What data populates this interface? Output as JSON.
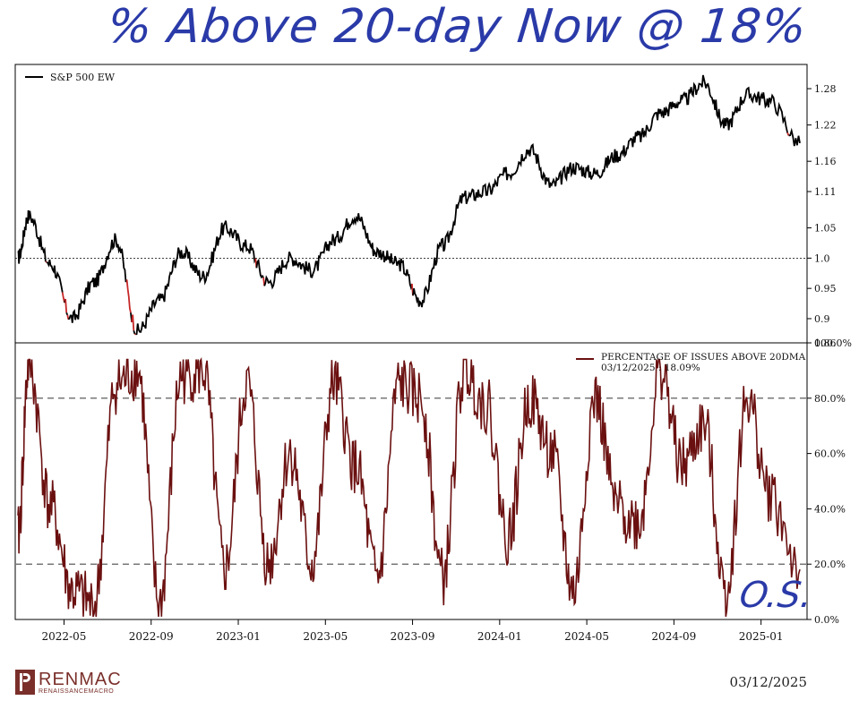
{
  "annotation": {
    "headline": "% Above 20-day Now @ 18%",
    "bottom_note": "O.S."
  },
  "footer": {
    "logo_brand": "RENMAC",
    "logo_sub": "RENAISSANCEMACRO",
    "date": "03/12/2025"
  },
  "colors": {
    "price_line": "#000000",
    "overbought": "#2e6b1e",
    "oversold": "#c62828",
    "breadth_line": "#6b1010",
    "reference_lines": "#777777",
    "annotation_ink": "#2a3aa8"
  },
  "chart_data": [
    {
      "type": "line",
      "legend": "S&P 500 EW",
      "legend_position": "top-left",
      "x": [
        "2022-03",
        "2022-04",
        "2022-05",
        "2022-06",
        "2022-07",
        "2022-08",
        "2022-09",
        "2022-10",
        "2022-11",
        "2022-12",
        "2023-01",
        "2023-02",
        "2023-03",
        "2023-04",
        "2023-05",
        "2023-06",
        "2023-07",
        "2023-08",
        "2023-09",
        "2023-10",
        "2023-11",
        "2023-12",
        "2024-01",
        "2024-02",
        "2024-03",
        "2024-04",
        "2024-05",
        "2024-06",
        "2024-07",
        "2024-08",
        "2024-09",
        "2024-10",
        "2024-11",
        "2024-12",
        "2025-01",
        "2025-02",
        "2025-03"
      ],
      "values": [
        1.0,
        1.07,
        0.99,
        0.9,
        0.96,
        1.03,
        0.88,
        0.93,
        1.01,
        0.97,
        1.05,
        1.02,
        0.96,
        1.0,
        0.98,
        1.03,
        1.07,
        1.01,
        0.99,
        0.93,
        1.02,
        1.1,
        1.11,
        1.14,
        1.18,
        1.12,
        1.15,
        1.14,
        1.17,
        1.2,
        1.24,
        1.26,
        1.29,
        1.22,
        1.27,
        1.26,
        1.19
      ],
      "reference_line": 1.0,
      "ylim": [
        0.86,
        1.32
      ],
      "yticks": [
        "0.86",
        "0.9",
        "0.95",
        "1.0",
        "1.05",
        "1.11",
        "1.16",
        "1.22",
        "1.28"
      ],
      "y_axis_position": "right"
    },
    {
      "type": "line",
      "legend": "PERCENTAGE OF ISSUES ABOVE 20DMA",
      "legend_sub": "03/12/2025 : 18.09%",
      "legend_position": "top-right",
      "x": [
        "2022-03",
        "2022-04",
        "2022-05",
        "2022-06",
        "2022-07",
        "2022-08",
        "2022-09",
        "2022-10",
        "2022-11",
        "2022-12",
        "2023-01",
        "2023-02",
        "2023-03",
        "2023-04",
        "2023-05",
        "2023-06",
        "2023-07",
        "2023-08",
        "2023-09",
        "2023-10",
        "2023-11",
        "2023-12",
        "2024-01",
        "2024-02",
        "2024-03",
        "2024-04",
        "2024-05",
        "2024-06",
        "2024-07",
        "2024-08",
        "2024-09",
        "2024-10",
        "2024-11",
        "2024-12",
        "2025-01",
        "2025-02",
        "2025-03"
      ],
      "values": [
        30,
        92,
        40,
        10,
        5,
        85,
        90,
        5,
        88,
        90,
        18,
        85,
        20,
        60,
        20,
        85,
        55,
        15,
        85,
        80,
        15,
        90,
        78,
        30,
        80,
        60,
        10,
        80,
        40,
        35,
        90,
        55,
        70,
        10,
        80,
        45,
        18.09
      ],
      "reference_lines": [
        20,
        80
      ],
      "ylim": [
        0,
        100
      ],
      "yticks": [
        "0.0%",
        "20.0%",
        "40.0%",
        "60.0%",
        "80.0%",
        "100.0%"
      ],
      "y_axis_position": "right"
    }
  ],
  "x_axis": {
    "ticks": [
      "2022-05",
      "2022-09",
      "2023-01",
      "2023-05",
      "2023-09",
      "2024-01",
      "2024-05",
      "2024-09",
      "2025-01"
    ]
  }
}
